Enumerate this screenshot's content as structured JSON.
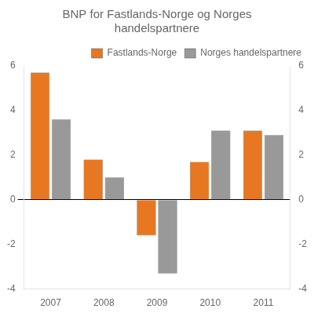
{
  "chart_data": {
    "type": "bar",
    "title": [
      "BNP for Fastlands-Norge og Norges",
      "handelspartnere"
    ],
    "categories": [
      "2007",
      "2008",
      "2009",
      "2010",
      "2011"
    ],
    "series": [
      {
        "name": "Fastlands-Norge",
        "color": "#E87722",
        "values": [
          5.7,
          1.8,
          -1.6,
          1.7,
          3.1
        ]
      },
      {
        "name": "Norges handelspartnere",
        "color": "#999999",
        "values": [
          3.6,
          1.0,
          -3.3,
          3.1,
          2.9
        ]
      }
    ],
    "ylim": [
      -4,
      6
    ],
    "yticks": [
      -4,
      -2,
      0,
      2,
      4,
      6
    ],
    "y2lim": [
      -4,
      6
    ],
    "y2ticks": [
      -4,
      -2,
      0,
      2,
      4,
      6
    ],
    "grid": false,
    "legend": "upper right"
  }
}
